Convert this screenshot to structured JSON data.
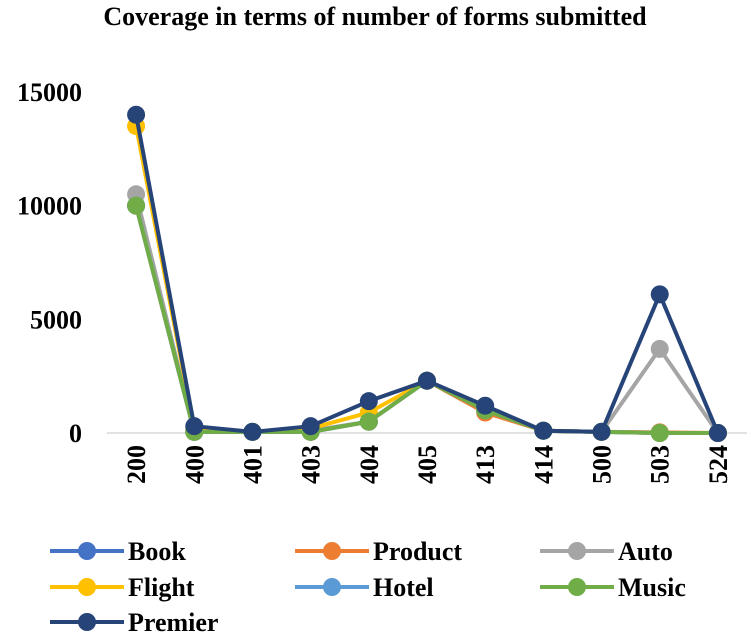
{
  "chart_data": {
    "type": "line",
    "title": "Coverage in terms of number of forms submitted",
    "categories": [
      "200",
      "400",
      "401",
      "403",
      "404",
      "405",
      "413",
      "414",
      "500",
      "503",
      "524"
    ],
    "series": [
      {
        "name": "Book",
        "color": "#4472c4",
        "values": [
          10000,
          50,
          50,
          50,
          500,
          2300,
          1000,
          100,
          50,
          0,
          0
        ]
      },
      {
        "name": "Product",
        "color": "#ed7d31",
        "values": [
          10000,
          50,
          50,
          50,
          500,
          2300,
          900,
          100,
          50,
          30,
          0
        ]
      },
      {
        "name": "Auto",
        "color": "#a5a5a5",
        "values": [
          10500,
          50,
          50,
          100,
          500,
          2300,
          1100,
          100,
          50,
          3700,
          0
        ]
      },
      {
        "name": "Flight",
        "color": "#ffc000",
        "values": [
          13500,
          200,
          50,
          200,
          900,
          2300,
          1100,
          100,
          50,
          0,
          0
        ]
      },
      {
        "name": "Hotel",
        "color": "#5b9bd5",
        "values": [
          10000,
          50,
          50,
          50,
          500,
          2300,
          1000,
          100,
          50,
          0,
          0
        ]
      },
      {
        "name": "Music",
        "color": "#70ad47",
        "values": [
          10000,
          50,
          50,
          50,
          500,
          2300,
          1000,
          100,
          50,
          0,
          0
        ]
      },
      {
        "name": "Premier",
        "color": "#264478",
        "values": [
          14000,
          300,
          50,
          300,
          1400,
          2300,
          1200,
          100,
          50,
          6100,
          0
        ]
      }
    ],
    "ylim": [
      0,
      15000
    ],
    "yticks": [
      0,
      5000,
      10000,
      15000
    ],
    "grid": false
  }
}
